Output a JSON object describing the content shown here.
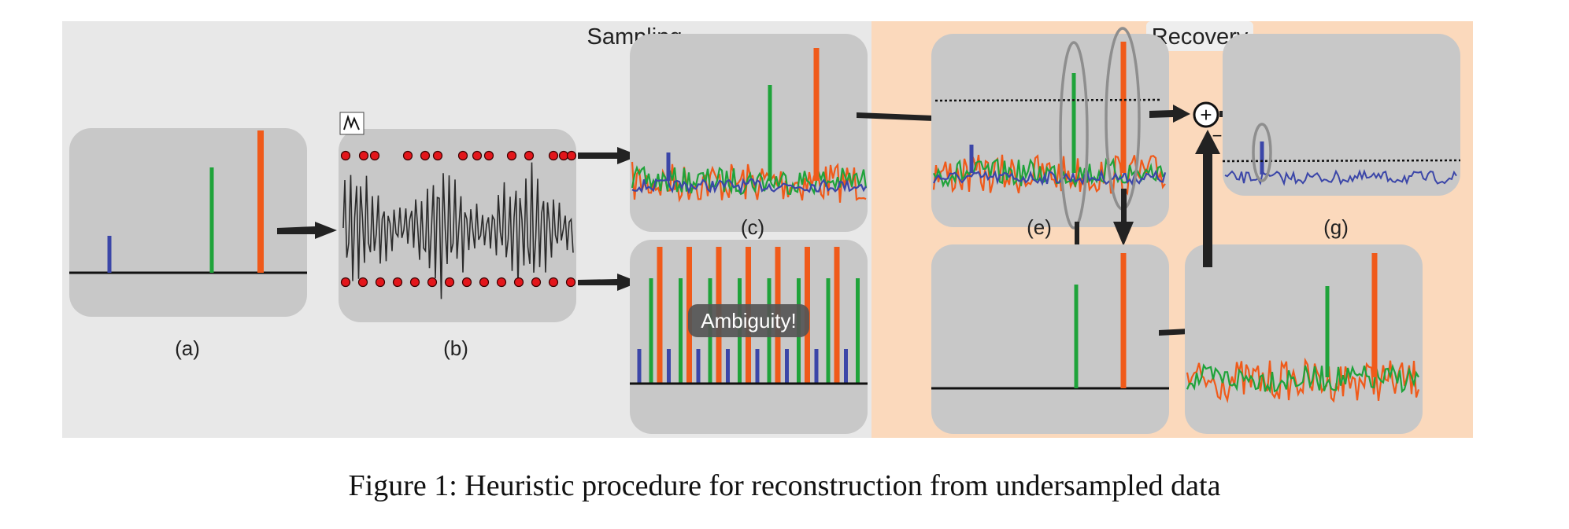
{
  "figure": {
    "section_labels": {
      "sampling": "Sampling",
      "recovery": "Recovery"
    },
    "panel_labels": {
      "a": "(a)",
      "b": "(b)",
      "c": "(c)",
      "e": "(e)",
      "g": "(g)"
    },
    "ambiguity_label": "Ambiguity!",
    "sum_symbol": "+",
    "minus_symbol": "−",
    "caption": "Figure 1: Heuristic procedure for reconstruction from undersampled data"
  },
  "colors": {
    "sampling_bg": "#e8e8e8",
    "recovery_bg": "#fbd9bc",
    "panel_bg": "#c8c8c8",
    "blue": "#3b46a8",
    "green": "#1fa33a",
    "orange": "#f05a1a",
    "sample_dot": "#e3161b",
    "signal": "#2b2b2b",
    "arrow": "#222222"
  },
  "icons": {
    "sampling_glyph": "sampling-pattern-icon"
  }
}
